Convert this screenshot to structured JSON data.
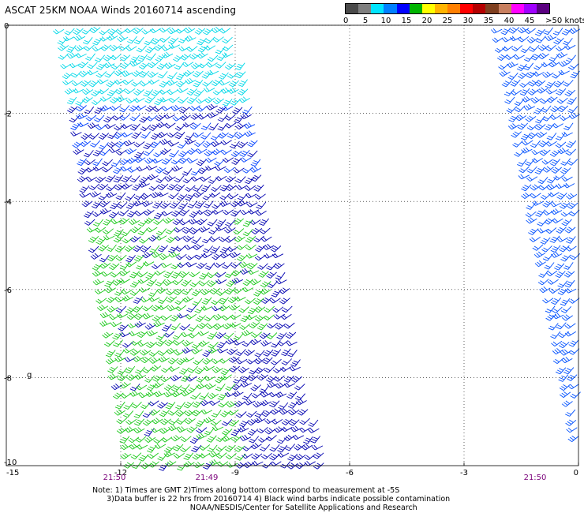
{
  "title": "ASCAT 25KM NOAA Winds 20160714 ascending",
  "legend": {
    "colors": [
      "#4a4a4a",
      "#7f7f7f",
      "#00e4ff",
      "#007fff",
      "#0000ff",
      "#00b400",
      "#ffff00",
      "#ffb400",
      "#ff7f00",
      "#ff0000",
      "#b40000",
      "#7f3f1f",
      "#c87f5f",
      "#ff00ff",
      "#a000ff",
      "#5a0080"
    ],
    "labels": [
      "0",
      "5",
      "10",
      "15",
      "20",
      "25",
      "30",
      "35",
      "40",
      "45",
      ">50 knots"
    ],
    "unit": "knots"
  },
  "map": {
    "x_ticks": [
      "-15",
      "-12",
      "-9",
      "-6",
      "-3",
      "0"
    ],
    "y_ticks": [
      "0",
      "-2",
      "-4",
      "-6",
      "-8",
      "-10"
    ],
    "time_labels": [
      "21:50",
      "21:49",
      "21:50"
    ],
    "marker": "g"
  },
  "swaths": [
    {
      "name": "main-swath",
      "dominant_colors": [
        "#00d8e8",
        "#0040ff",
        "#0000b0",
        "#18c818"
      ]
    },
    {
      "name": "right-swath",
      "dominant_colors": [
        "#0050ff"
      ]
    }
  ],
  "note": {
    "line1": "Note: 1) Times are GMT 2)Times along bottom correspond to measurement at -5S",
    "line2": "      3)Data buffer is 22 hrs from 20160714 4) Black wind barbs indicate possible contamination",
    "line3": "                                         NOAA/NESDIS/Center for Satellite Applications and Research"
  }
}
